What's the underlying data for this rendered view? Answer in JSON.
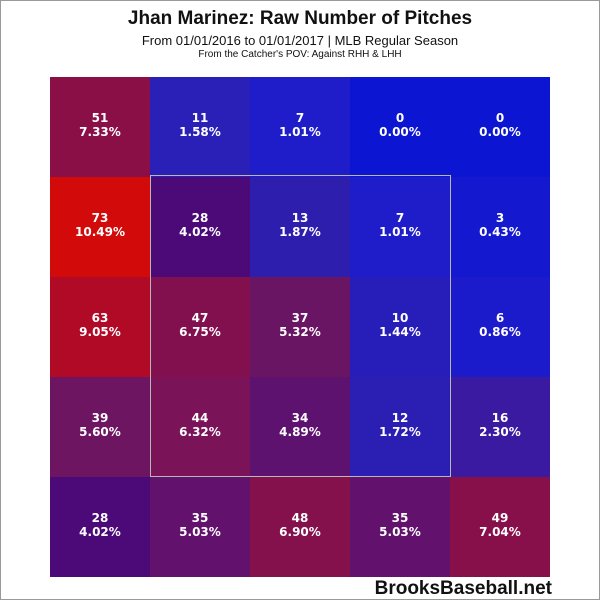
{
  "title": "Jhan Marinez: Raw Number of Pitches",
  "subtitle": "From 01/01/2016 to 01/01/2017 | MLB Regular Season",
  "subtitle2": "From the Catcher's POV:  Against RHH & LHH",
  "watermark": "BrooksBaseball.net",
  "chart_data": {
    "type": "heatmap",
    "rows": 5,
    "cols": 5,
    "cells": [
      [
        {
          "count": "51",
          "pct": "7.33%",
          "color": "#8a0f46"
        },
        {
          "count": "11",
          "pct": "1.58%",
          "color": "#2a20b8"
        },
        {
          "count": "7",
          "pct": "1.01%",
          "color": "#1f1dc9"
        },
        {
          "count": "0",
          "pct": "0.00%",
          "color": "#0c16d2"
        },
        {
          "count": "0",
          "pct": "0.00%",
          "color": "#0c16d2"
        }
      ],
      [
        {
          "count": "73",
          "pct": "10.49%",
          "color": "#d20a0a"
        },
        {
          "count": "28",
          "pct": "4.02%",
          "color": "#4b0a78"
        },
        {
          "count": "13",
          "pct": "1.87%",
          "color": "#2d1eae"
        },
        {
          "count": "7",
          "pct": "1.01%",
          "color": "#1f1dc9"
        },
        {
          "count": "3",
          "pct": "0.43%",
          "color": "#1419d0"
        }
      ],
      [
        {
          "count": "63",
          "pct": "9.05%",
          "color": "#b00a26"
        },
        {
          "count": "47",
          "pct": "6.75%",
          "color": "#820f4e"
        },
        {
          "count": "37",
          "pct": "5.32%",
          "color": "#6a1464"
        },
        {
          "count": "10",
          "pct": "1.44%",
          "color": "#271eba"
        },
        {
          "count": "6",
          "pct": "0.86%",
          "color": "#1c1bcc"
        }
      ],
      [
        {
          "count": "39",
          "pct": "5.60%",
          "color": "#6e1562"
        },
        {
          "count": "44",
          "pct": "6.32%",
          "color": "#7a1358"
        },
        {
          "count": "34",
          "pct": "4.89%",
          "color": "#5e1270"
        },
        {
          "count": "12",
          "pct": "1.72%",
          "color": "#2b1eb3"
        },
        {
          "count": "16",
          "pct": "2.30%",
          "color": "#3a1aa0"
        }
      ],
      [
        {
          "count": "28",
          "pct": "4.02%",
          "color": "#4b0a78"
        },
        {
          "count": "35",
          "pct": "5.03%",
          "color": "#62126c"
        },
        {
          "count": "48",
          "pct": "6.90%",
          "color": "#84104c"
        },
        {
          "count": "35",
          "pct": "5.03%",
          "color": "#62126c"
        },
        {
          "count": "49",
          "pct": "7.04%",
          "color": "#88104a"
        }
      ]
    ],
    "strike_zone": {
      "col_start": 1,
      "col_end": 3,
      "row_start": 1,
      "row_end": 3
    }
  }
}
